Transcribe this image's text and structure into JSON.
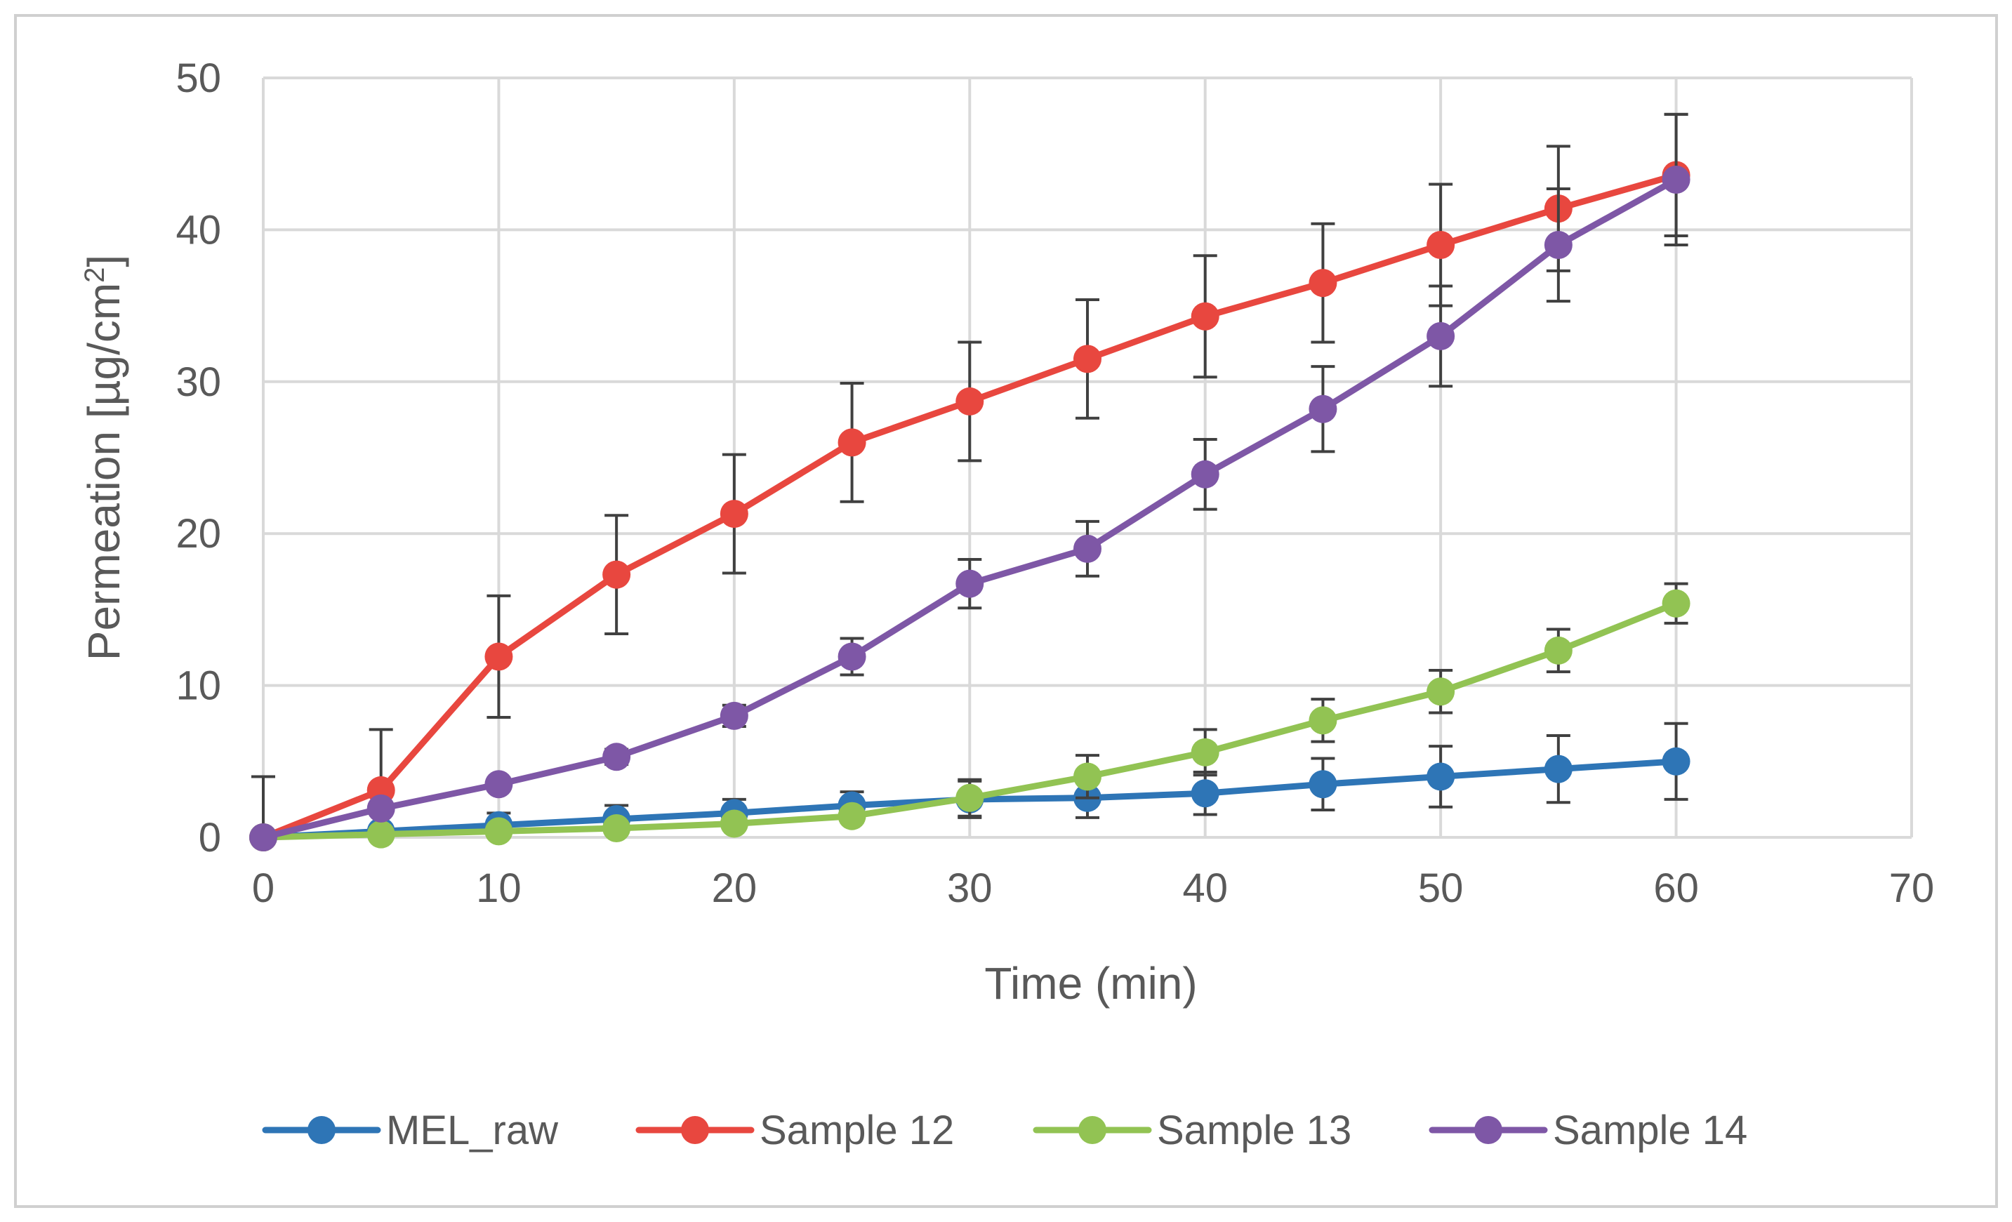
{
  "chart_data": {
    "type": "line",
    "title": "",
    "xlabel": "Time (min)",
    "ylabel_main": "Permeation [µg/cm",
    "ylabel_superscript": "2",
    "ylabel_close": "]",
    "xlim": [
      0,
      70
    ],
    "ylim": [
      0,
      50
    ],
    "x_ticks": [
      0,
      10,
      20,
      30,
      40,
      50,
      60,
      70
    ],
    "y_ticks": [
      0,
      10,
      20,
      30,
      40,
      50
    ],
    "grid": true,
    "legend_position": "bottom",
    "x": [
      0,
      5,
      10,
      15,
      20,
      25,
      30,
      35,
      40,
      45,
      50,
      55,
      60
    ],
    "series": [
      {
        "name": "MEL_raw",
        "color": "#2e75b6",
        "values": [
          0,
          0.4,
          0.8,
          1.2,
          1.6,
          2.1,
          2.5,
          2.6,
          2.9,
          3.5,
          4.0,
          4.5,
          5.0
        ],
        "errors": [
          4.0,
          0.3,
          0.8,
          0.9,
          0.9,
          0.9,
          1.2,
          1.3,
          1.4,
          1.7,
          2.0,
          2.2,
          2.5
        ]
      },
      {
        "name": "Sample 12",
        "color": "#e8473f",
        "values": [
          0,
          3.1,
          11.9,
          17.3,
          21.3,
          26.0,
          28.7,
          31.5,
          34.3,
          36.5,
          39.0,
          41.4,
          43.6
        ],
        "errors": [
          0,
          4.0,
          4.0,
          3.9,
          3.9,
          3.9,
          3.9,
          3.9,
          4.0,
          3.9,
          4.0,
          4.1,
          4.0
        ]
      },
      {
        "name": "Sample 13",
        "color": "#92c353",
        "values": [
          0,
          0.2,
          0.4,
          0.6,
          0.9,
          1.4,
          2.6,
          4.0,
          5.6,
          7.7,
          9.6,
          12.3,
          15.4
        ],
        "errors": [
          0,
          0.2,
          0.3,
          0.3,
          0.3,
          0.4,
          1.2,
          1.4,
          1.5,
          1.4,
          1.4,
          1.4,
          1.3
        ]
      },
      {
        "name": "Sample 14",
        "color": "#7e57a6",
        "values": [
          0,
          1.9,
          3.5,
          5.3,
          8.0,
          11.9,
          16.7,
          19.0,
          23.9,
          28.2,
          33.0,
          39.0,
          43.3
        ],
        "errors": [
          0,
          0.3,
          0.4,
          0.5,
          0.7,
          1.2,
          1.6,
          1.8,
          2.3,
          2.8,
          3.3,
          3.7,
          4.3
        ]
      }
    ]
  }
}
